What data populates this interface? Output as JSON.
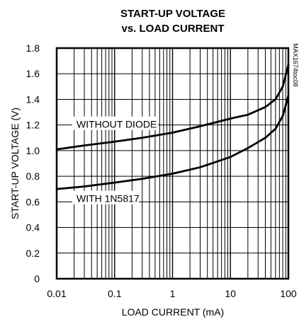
{
  "chart_data": {
    "type": "line",
    "title_line1": "START-UP VOLTAGE",
    "title_line2": "vs. LOAD CURRENT",
    "xlabel": "LOAD CURRENT (mA)",
    "ylabel": "START-UP VOLTAGE (V)",
    "xscale": "log",
    "xlim": [
      0.01,
      100
    ],
    "ylim": [
      0,
      1.8
    ],
    "xticks": [
      0.01,
      0.1,
      1,
      10,
      100
    ],
    "xtick_labels": [
      "0.01",
      "0.1",
      "1",
      "10",
      "100"
    ],
    "yticks": [
      0,
      0.2,
      0.4,
      0.6,
      0.8,
      1.0,
      1.2,
      1.4,
      1.6,
      1.8
    ],
    "ytick_labels": [
      "0",
      "0.2",
      "0.4",
      "0.6",
      "0.8",
      "1.0",
      "1.2",
      "1.4",
      "1.6",
      "1.8"
    ],
    "grid": true,
    "watermark": "MAX1674toc08",
    "series": [
      {
        "name": "WITHOUT DIODE",
        "x": [
          0.01,
          0.03,
          0.1,
          0.3,
          1,
          3,
          10,
          20,
          40,
          60,
          80,
          100
        ],
        "y": [
          1.01,
          1.04,
          1.07,
          1.1,
          1.14,
          1.19,
          1.25,
          1.28,
          1.34,
          1.4,
          1.5,
          1.67
        ],
        "label_at": {
          "x": 0.022,
          "y": 1.2
        }
      },
      {
        "name": "WITH 1N5817",
        "x": [
          0.01,
          0.03,
          0.1,
          0.3,
          1,
          3,
          10,
          20,
          40,
          60,
          80,
          100
        ],
        "y": [
          0.7,
          0.72,
          0.75,
          0.78,
          0.82,
          0.87,
          0.95,
          1.02,
          1.1,
          1.17,
          1.27,
          1.43
        ],
        "label_at": {
          "x": 0.022,
          "y": 0.62
        }
      }
    ]
  }
}
